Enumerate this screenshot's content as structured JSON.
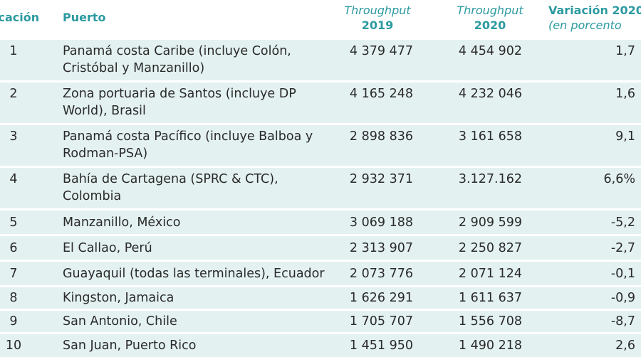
{
  "header": {
    "rank": "icación",
    "port": "Puerto",
    "tp2019_line1": "Throughput",
    "tp2019_line2": "2019",
    "tp2020_line1": "Throughput",
    "tp2020_line2": "2020",
    "var_line1": "Variación 2020",
    "var_line2": "(en porcento"
  },
  "rows": [
    {
      "rank": "1",
      "port": "Panamá costa Caribe (incluye Colón, Cristóbal y Manzanillo)",
      "tp2019": "4 379 477",
      "tp2020": "4 454 902",
      "var": "1,7"
    },
    {
      "rank": "2",
      "port": "Zona portuaria de Santos (incluye DP World), Brasil",
      "tp2019": "4 165 248",
      "tp2020": "4 232 046",
      "var": "1,6"
    },
    {
      "rank": "3",
      "port": "Panamá costa Pacífico (incluye Balboa y Rodman-PSA)",
      "tp2019": "2 898 836",
      "tp2020": "3 161 658",
      "var": "9,1"
    },
    {
      "rank": "4",
      "port": "Bahía de Cartagena (SPRC & CTC), Colombia",
      "tp2019": "2 932 371",
      "tp2020": "3.127.162",
      "var": "6,6%"
    },
    {
      "rank": "5",
      "port": "Manzanillo, México",
      "tp2019": "3 069 188",
      "tp2020": "2 909 599",
      "var": "-5,2"
    },
    {
      "rank": "6",
      "port": "El Callao, Perú",
      "tp2019": "2 313 907",
      "tp2020": "2 250 827",
      "var": "-2,7"
    },
    {
      "rank": "7",
      "port": "Guayaquil (todas las terminales), Ecuador",
      "tp2019": "2 073 776",
      "tp2020": "2 071 124",
      "var": "-0,1"
    },
    {
      "rank": "8",
      "port": "Kingston, Jamaica",
      "tp2019": "1 626 291",
      "tp2020": "1 611 637",
      "var": "-0,9"
    },
    {
      "rank": "9",
      "port": "San Antonio, Chile",
      "tp2019": "1 705 707",
      "tp2020": "1 556 708",
      "var": "-8,7"
    },
    {
      "rank": "10",
      "port": "San Juan, Puerto Rico",
      "tp2019": "1 451 950",
      "tp2020": "1 490 218",
      "var": "2,6"
    }
  ]
}
